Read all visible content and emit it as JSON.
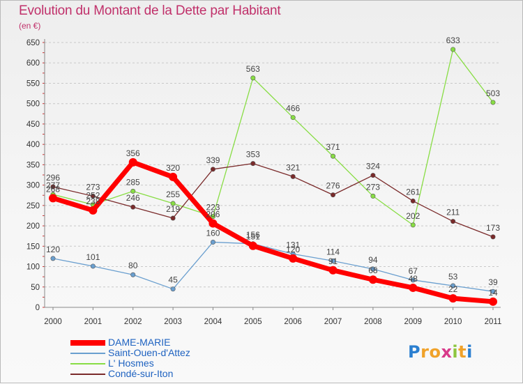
{
  "title": "Evolution du Montant de la Dette par Habitant",
  "unit_label": "(en €)",
  "logo_text": "Proxiti",
  "chart_data": {
    "type": "line",
    "title": "Evolution du Montant de la Dette par Habitant",
    "ylabel": "(en €)",
    "xlabel": "",
    "x": [
      "2000",
      "2001",
      "2002",
      "2003",
      "2004",
      "2005",
      "2006",
      "2007",
      "2008",
      "2009",
      "2010",
      "2011"
    ],
    "ylim": [
      0,
      650
    ],
    "yticks": [
      0,
      50,
      100,
      150,
      200,
      250,
      300,
      350,
      400,
      450,
      500,
      550,
      600,
      650
    ],
    "grid": "horizontal-dashed",
    "legend_position": "bottom-left",
    "series": [
      {
        "name": "DAME-MARIE",
        "color": "#ff0000",
        "values": [
          268,
          238,
          356,
          320,
          206,
          151,
          120,
          91,
          68,
          48,
          22,
          14
        ]
      },
      {
        "name": "Saint-Ouen-d'Attez",
        "color": "#6a9fcf",
        "values": [
          120,
          101,
          80,
          45,
          160,
          156,
          131,
          114,
          94,
          67,
          53,
          39
        ]
      },
      {
        "name": "L' Hosmes",
        "color": "#88dd44",
        "values": [
          277,
          252,
          285,
          255,
          223,
          563,
          466,
          371,
          273,
          202,
          633,
          503
        ]
      },
      {
        "name": "Condé-sur-Iton",
        "color": "#7a2a2a",
        "values": [
          296,
          273,
          246,
          219,
          339,
          353,
          321,
          276,
          324,
          261,
          211,
          173
        ]
      }
    ]
  }
}
